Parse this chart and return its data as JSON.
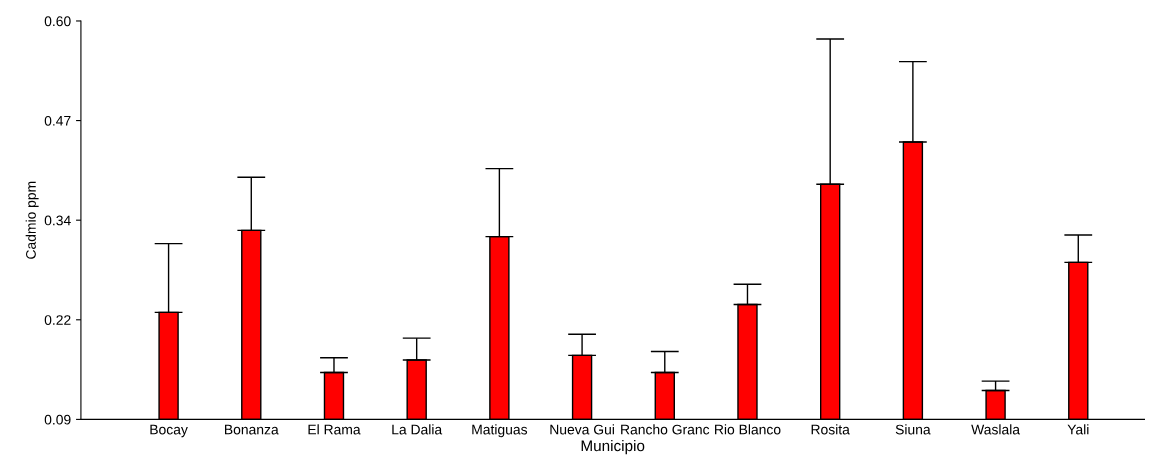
{
  "chart_data": {
    "type": "bar",
    "xlabel": "Municipio",
    "ylabel": "Cadmio ppm",
    "categories": [
      "Bocay",
      "Bonanza",
      "El Rama",
      "La Dalia",
      "Matiguas",
      "Nueva Gui",
      "Rancho Granc",
      "Rio Blanco",
      "Rosita",
      "Siuna",
      "Waslala",
      "Yali"
    ],
    "values": [
      0.227,
      0.332,
      0.15,
      0.166,
      0.324,
      0.172,
      0.15,
      0.237,
      0.391,
      0.445,
      0.127,
      0.291
    ],
    "errors": [
      [
        0.227,
        0.315
      ],
      [
        0.332,
        0.4
      ],
      [
        0.15,
        0.169
      ],
      [
        0.166,
        0.194
      ],
      [
        0.324,
        0.411
      ],
      [
        0.172,
        0.199
      ],
      [
        0.15,
        0.177
      ],
      [
        0.237,
        0.263
      ],
      [
        0.391,
        0.577
      ],
      [
        0.445,
        0.548
      ],
      [
        0.127,
        0.139
      ],
      [
        0.291,
        0.326
      ]
    ],
    "color": "#ff0000",
    "ylim": [
      0.09,
      0.6
    ],
    "yticks": [
      0.09,
      {
        "value": 0.2175,
        "label": "0.22"
      },
      {
        "value": 0.345,
        "label": "0.34"
      },
      {
        "value": 0.4725,
        "label": "0.47"
      },
      {
        "value": 0.6,
        "label": "0.60"
      }
    ],
    "grid": false,
    "legend": false
  }
}
